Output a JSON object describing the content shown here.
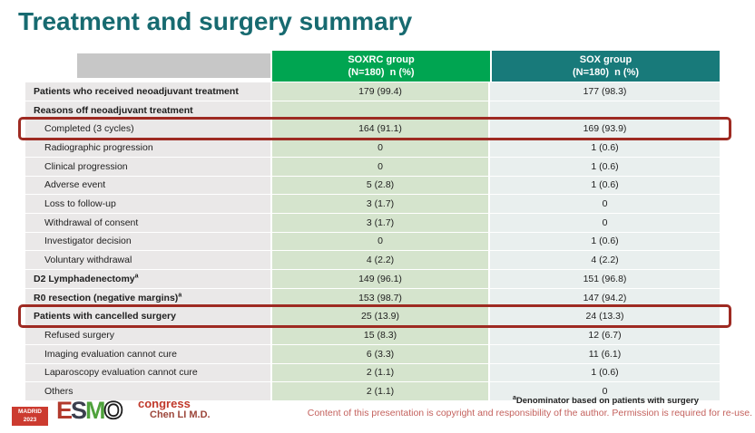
{
  "slide": {
    "title": "Treatment and surgery summary",
    "presenter": "Chen LI M.D.",
    "footnote_marker": "a",
    "footnote": "Denominator based on patients with surgery",
    "copyright": "Content of this presentation is copyright and responsibility of the author.  Permission is required for re-use."
  },
  "logo": {
    "city": "MADRID",
    "year": "2023",
    "event": "congress",
    "letters": [
      "E",
      "S",
      "M",
      "O"
    ]
  },
  "colors": {
    "title_teal": "#176a70",
    "soxrc_header_green": "#00a551",
    "sox_header_teal": "#187a7a",
    "soxrc_cell_green": "#d5e4cd",
    "sox_cell_blue": "#e9efee",
    "label_cell_gray": "#eae8e8",
    "highlight_border_red": "#9e2a22",
    "copyright_red": "#c4625e"
  },
  "table": {
    "columns": [
      {
        "line1": "SOXRC group",
        "line2": "(N=180)  n (%)"
      },
      {
        "line1": "SOX group",
        "line2": "(N=180)  n (%)"
      }
    ],
    "rows": [
      {
        "label": "Patients who received neoadjuvant treatment",
        "bold": true,
        "indent": false,
        "soxrc": "179 (99.4)",
        "sox": "177 (98.3)",
        "highlight": false
      },
      {
        "label": "Reasons off neoadjuvant treatment",
        "bold": true,
        "indent": false,
        "soxrc": "",
        "sox": "",
        "highlight": false
      },
      {
        "label": "Completed (3 cycles)",
        "bold": false,
        "indent": true,
        "soxrc": "164 (91.1)",
        "sox": "169 (93.9)",
        "highlight": true
      },
      {
        "label": "Radiographic progression",
        "bold": false,
        "indent": true,
        "soxrc": "0",
        "sox": "1 (0.6)",
        "highlight": false
      },
      {
        "label": "Clinical progression",
        "bold": false,
        "indent": true,
        "soxrc": "0",
        "sox": "1 (0.6)",
        "highlight": false
      },
      {
        "label": "Adverse event",
        "bold": false,
        "indent": true,
        "soxrc": "5 (2.8)",
        "sox": "1 (0.6)",
        "highlight": false
      },
      {
        "label": "Loss to follow-up",
        "bold": false,
        "indent": true,
        "soxrc": "3 (1.7)",
        "sox": "0",
        "highlight": false
      },
      {
        "label": "Withdrawal of consent",
        "bold": false,
        "indent": true,
        "soxrc": "3 (1.7)",
        "sox": "0",
        "highlight": false
      },
      {
        "label": "Investigator decision",
        "bold": false,
        "indent": true,
        "soxrc": "0",
        "sox": "1 (0.6)",
        "highlight": false
      },
      {
        "label": "Voluntary withdrawal",
        "bold": false,
        "indent": true,
        "soxrc": "4 (2.2)",
        "sox": "4 (2.2)",
        "highlight": false
      },
      {
        "label": "D2 Lymphadenectomy",
        "sup": "a",
        "bold": true,
        "indent": false,
        "soxrc": "149 (96.1)",
        "sox": "151 (96.8)",
        "highlight": false
      },
      {
        "label": "R0 resection (negative margins)",
        "sup": "a",
        "bold": true,
        "indent": false,
        "soxrc": "153 (98.7)",
        "sox": "147 (94.2)",
        "highlight": false
      },
      {
        "label": "Patients with cancelled surgery",
        "bold": true,
        "indent": false,
        "soxrc": "25 (13.9)",
        "sox": "24 (13.3)",
        "highlight": true
      },
      {
        "label": "Refused surgery",
        "bold": false,
        "indent": true,
        "soxrc": "15 (8.3)",
        "sox": "12 (6.7)",
        "highlight": false
      },
      {
        "label": "Imaging evaluation cannot cure",
        "bold": false,
        "indent": true,
        "soxrc": "6 (3.3)",
        "sox": "11 (6.1)",
        "highlight": false
      },
      {
        "label": "Laparoscopy evaluation cannot cure",
        "bold": false,
        "indent": true,
        "soxrc": "2 (1.1)",
        "sox": "1 (0.6)",
        "highlight": false
      },
      {
        "label": "Others",
        "bold": false,
        "indent": true,
        "soxrc": "2 (1.1)",
        "sox": "0",
        "highlight": false
      }
    ]
  }
}
